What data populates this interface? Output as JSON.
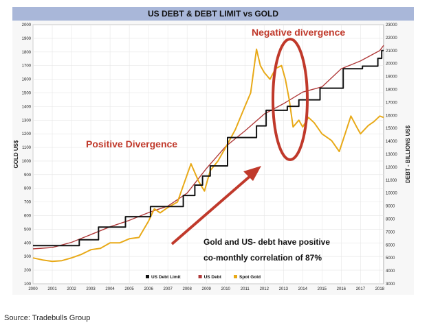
{
  "chart_data": {
    "type": "line",
    "title": "US DEBT & DEBT LIMIT vs GOLD",
    "ylabel_left": "GOLD US$",
    "ylabel_right": "DEBT - BILLIONS US$",
    "x_ticks": [
      "2000",
      "2001",
      "2002",
      "2003",
      "2004",
      "2005",
      "2006",
      "2007",
      "2008",
      "2009",
      "2010",
      "2011",
      "2012",
      "2013",
      "2014",
      "2015",
      "2016",
      "2017",
      "2018"
    ],
    "xlim": [
      2000,
      2018.2
    ],
    "ylim_left": [
      100,
      2000
    ],
    "ylim_right": [
      3000,
      23000
    ],
    "left_ticks": [
      100,
      200,
      300,
      400,
      500,
      600,
      700,
      800,
      900,
      1000,
      1100,
      1200,
      1300,
      1400,
      1500,
      1600,
      1700,
      1800,
      1900,
      2000
    ],
    "right_ticks": [
      3000,
      4000,
      5000,
      6000,
      7000,
      8000,
      9000,
      10000,
      11000,
      12000,
      13000,
      14000,
      15000,
      16000,
      17000,
      18000,
      19000,
      20000,
      21000,
      22000,
      23000
    ],
    "grid": true,
    "legend_position": "bottom",
    "legend": [
      {
        "label": "US Debt Limit",
        "color": "#111111"
      },
      {
        "label": "US Debt",
        "color": "#b03a3a"
      },
      {
        "label": "Spot Gold",
        "color": "#e8a917"
      }
    ],
    "series": [
      {
        "name": "US Debt Limit",
        "axis": "right",
        "step": true,
        "color": "#111111",
        "x": [
          2000,
          2002.4,
          2003.4,
          2004.8,
          2006.1,
          2007.8,
          2008.4,
          2008.8,
          2009.2,
          2010.1,
          2011.6,
          2012.1,
          2013.2,
          2013.8,
          2014.9,
          2016.1,
          2017.1,
          2017.9,
          2018.1,
          2018.2
        ],
        "y": [
          5950,
          6400,
          7380,
          8180,
          8970,
          9820,
          10620,
          11320,
          12100,
          14290,
          15190,
          16390,
          16700,
          17200,
          18100,
          19600,
          19800,
          20400,
          21000,
          21000
        ]
      },
      {
        "name": "US Debt",
        "axis": "right",
        "step": false,
        "color": "#b03a3a",
        "x": [
          2000,
          2001,
          2002,
          2003,
          2004,
          2005,
          2006,
          2007,
          2008,
          2009,
          2010,
          2011,
          2012,
          2013,
          2014,
          2015,
          2016,
          2017,
          2018,
          2018.2
        ],
        "y": [
          5700,
          5800,
          6200,
          6800,
          7400,
          7900,
          8500,
          9000,
          10000,
          11900,
          13600,
          14800,
          16100,
          16900,
          17800,
          18200,
          19600,
          20200,
          21000,
          21400
        ]
      },
      {
        "name": "Spot Gold",
        "axis": "left",
        "step": false,
        "color": "#e8a917",
        "x": [
          2000,
          2000.5,
          2001,
          2001.5,
          2002,
          2002.5,
          2003,
          2003.5,
          2004,
          2004.5,
          2005,
          2005.5,
          2006,
          2006.3,
          2006.6,
          2007,
          2007.5,
          2008,
          2008.2,
          2008.6,
          2008.9,
          2009.2,
          2009.6,
          2010,
          2010.5,
          2011,
          2011.3,
          2011.6,
          2011.8,
          2012,
          2012.3,
          2012.6,
          2012.9,
          2013.1,
          2013.3,
          2013.5,
          2013.8,
          2014,
          2014.3,
          2014.6,
          2015,
          2015.5,
          2015.9,
          2016.2,
          2016.5,
          2016.8,
          2017,
          2017.4,
          2017.7,
          2018,
          2018.2
        ],
        "y": [
          290,
          275,
          265,
          270,
          290,
          315,
          350,
          360,
          400,
          400,
          430,
          440,
          560,
          650,
          620,
          660,
          700,
          900,
          980,
          850,
          780,
          930,
          1000,
          1100,
          1230,
          1400,
          1500,
          1820,
          1700,
          1650,
          1600,
          1680,
          1700,
          1600,
          1450,
          1250,
          1300,
          1250,
          1320,
          1280,
          1200,
          1150,
          1070,
          1200,
          1330,
          1250,
          1200,
          1260,
          1290,
          1330,
          1320
        ]
      }
    ],
    "annotations": {
      "positive_divergence": "Positive Divergence",
      "negative_divergence": "Negative divergence",
      "correlation_line1": "Gold and US- debt have positive",
      "correlation_line2": "co-monthly correlation of 87%"
    }
  },
  "source_note": "Source: Tradebulls Group"
}
